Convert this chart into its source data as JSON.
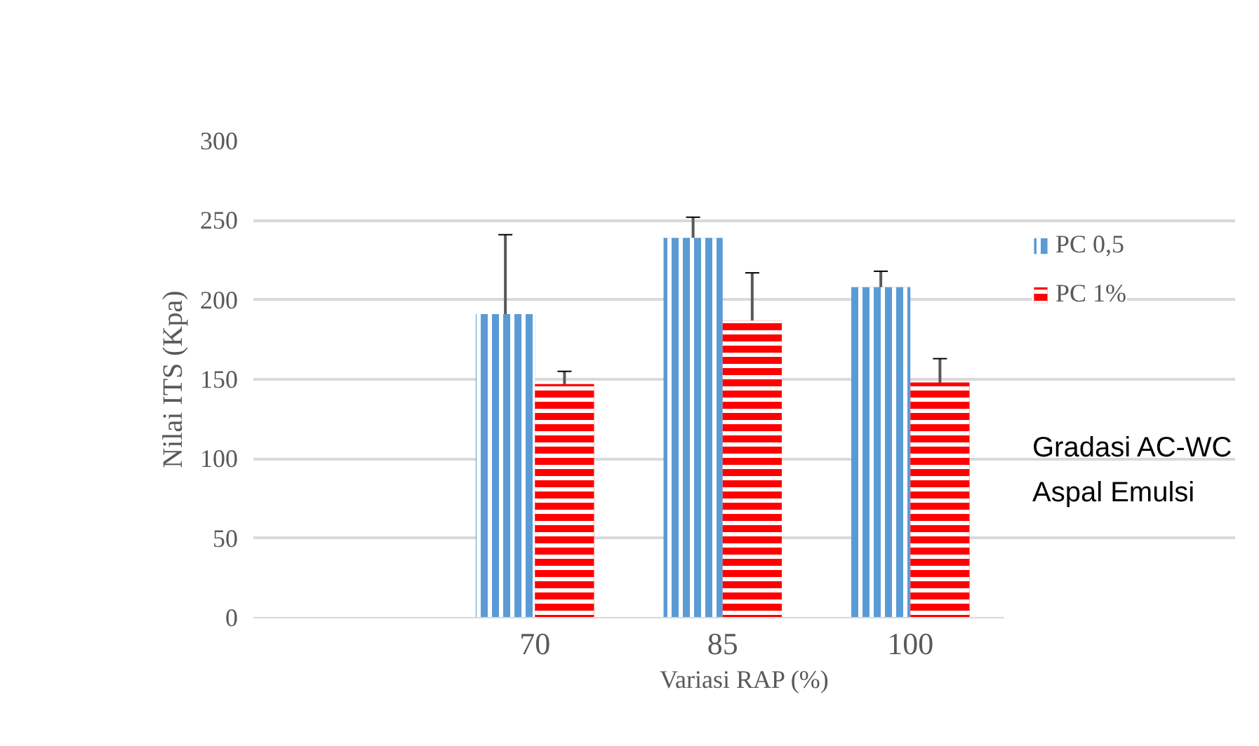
{
  "chart_data": {
    "type": "bar",
    "xlabel": "Variasi RAP (%)",
    "ylabel": "Nilai ITS (Kpa)",
    "categories": [
      null,
      "70",
      "85",
      "100"
    ],
    "series": [
      {
        "name": "PC 0,5",
        "color": "#5b9bd5",
        "values": [
          null,
          191,
          239,
          208
        ],
        "errors": [
          null,
          50,
          13,
          10
        ]
      },
      {
        "name": "PC 1%",
        "color": "#ff0000",
        "values": [
          null,
          147,
          187,
          148
        ],
        "errors": [
          null,
          8,
          30,
          15
        ]
      }
    ],
    "ylim": [
      0,
      300
    ],
    "yticks": [
      0,
      50,
      100,
      150,
      200,
      250,
      300
    ],
    "grid": "y",
    "legend": "right",
    "annotations": [
      "Gradasi AC-WC",
      "Aspal Emulsi"
    ]
  }
}
